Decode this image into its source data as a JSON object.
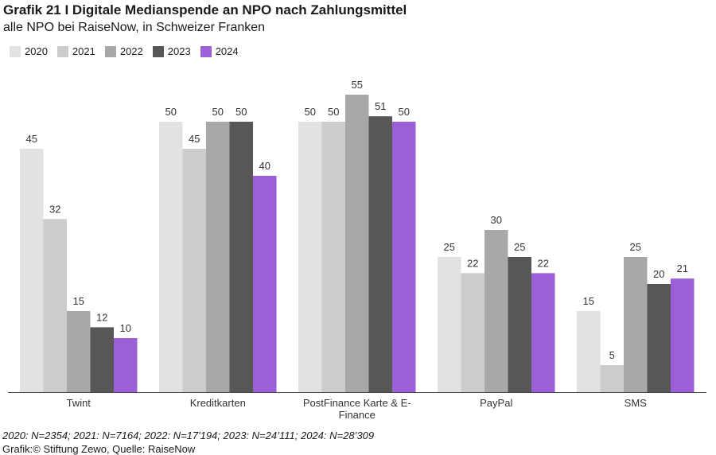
{
  "header": {
    "title": "Grafik 21 I Digitale Medianspende an NPO nach Zahlungsmittel",
    "subtitle": "alle NPO bei RaiseNow, in Schweizer Franken"
  },
  "footer": {
    "note": "2020: N=2354; 2021: N=7164; 2022: N=17'194; 2023: N=24’111; 2024: N=28’309",
    "source": "Grafik:© Stiftung Zewo, Quelle: RaiseNow"
  },
  "chart_data": {
    "type": "bar",
    "title": "Grafik 21 I Digitale Medianspende an NPO nach Zahlungsmittel",
    "subtitle": "alle NPO bei RaiseNow, in Schweizer Franken",
    "categories": [
      "Twint",
      "Kreditkarten",
      "PostFinance Karte & E-Finance",
      "PayPal",
      "SMS"
    ],
    "category_lines": [
      [
        "Twint"
      ],
      [
        "Kreditkarten"
      ],
      [
        "PostFinance Karte & E-",
        "Finance"
      ],
      [
        "PayPal"
      ],
      [
        "SMS"
      ]
    ],
    "series": [
      {
        "name": "2020",
        "color": "#e2e2e2",
        "values": [
          45,
          50,
          50,
          25,
          15
        ]
      },
      {
        "name": "2021",
        "color": "#cccccc",
        "values": [
          32,
          45,
          50,
          22,
          5
        ]
      },
      {
        "name": "2022",
        "color": "#a8a8a8",
        "values": [
          15,
          50,
          55,
          30,
          25
        ]
      },
      {
        "name": "2023",
        "color": "#575757",
        "values": [
          12,
          50,
          51,
          25,
          20
        ]
      },
      {
        "name": "2024",
        "color": "#9b5fd6",
        "values": [
          10,
          40,
          50,
          22,
          21
        ]
      }
    ],
    "ylim": [
      0,
      60
    ],
    "grid": false,
    "legend_position": "top-left",
    "data_labels": true
  }
}
